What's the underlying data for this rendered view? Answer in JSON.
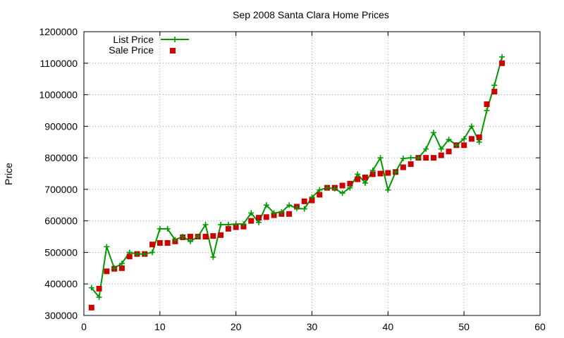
{
  "chart_data": {
    "type": "scatter",
    "title": "Sep 2008 Santa Clara Home Prices",
    "xlabel": "",
    "ylabel": "Price",
    "xlim": [
      0,
      60
    ],
    "ylim": [
      300000,
      1200000
    ],
    "xticks": [
      0,
      10,
      20,
      30,
      40,
      50,
      60
    ],
    "yticks": [
      300000,
      400000,
      500000,
      600000,
      700000,
      800000,
      900000,
      1000000,
      1100000,
      1200000
    ],
    "grid": true,
    "legend_position": "top-left",
    "series": [
      {
        "name": "List Price",
        "style": "linespoints",
        "marker": "plus",
        "color": "#009900",
        "x": [
          1,
          2,
          3,
          4,
          5,
          6,
          7,
          8,
          9,
          10,
          11,
          12,
          13,
          14,
          15,
          16,
          17,
          18,
          19,
          20,
          21,
          22,
          23,
          24,
          25,
          26,
          27,
          28,
          29,
          30,
          31,
          32,
          33,
          34,
          35,
          36,
          37,
          38,
          39,
          40,
          41,
          42,
          43,
          44,
          45,
          46,
          47,
          48,
          49,
          50,
          51,
          52,
          53,
          54,
          55
        ],
        "y": [
          388000,
          358000,
          518000,
          450000,
          465000,
          500000,
          495000,
          495000,
          500000,
          575000,
          575000,
          540000,
          550000,
          535000,
          550000,
          588000,
          485000,
          588000,
          588000,
          590000,
          590000,
          625000,
          595000,
          650000,
          625000,
          628000,
          650000,
          640000,
          638000,
          675000,
          698000,
          705000,
          702000,
          688000,
          705000,
          748000,
          720000,
          760000,
          800000,
          698000,
          755000,
          798000,
          800000,
          800000,
          828000,
          880000,
          828000,
          858000,
          840000,
          860000,
          900000,
          850000,
          950000,
          1030000,
          1120000
        ]
      },
      {
        "name": "Sale Price",
        "style": "points",
        "marker": "square",
        "color": "#cc0000",
        "x": [
          1,
          2,
          3,
          4,
          5,
          6,
          7,
          8,
          9,
          10,
          11,
          12,
          13,
          14,
          15,
          16,
          17,
          18,
          19,
          20,
          21,
          22,
          23,
          24,
          25,
          26,
          27,
          28,
          29,
          30,
          31,
          32,
          33,
          34,
          35,
          36,
          37,
          38,
          39,
          40,
          41,
          42,
          43,
          44,
          45,
          46,
          47,
          48,
          49,
          50,
          51,
          52,
          53,
          54,
          55
        ],
        "y": [
          325000,
          385000,
          440000,
          448000,
          450000,
          487000,
          495000,
          495000,
          525000,
          530000,
          530000,
          535000,
          548000,
          550000,
          550000,
          550000,
          552000,
          555000,
          575000,
          580000,
          582000,
          600000,
          610000,
          612000,
          618000,
          622000,
          622000,
          645000,
          662000,
          665000,
          683000,
          705000,
          705000,
          712000,
          718000,
          732000,
          738000,
          748000,
          750000,
          752000,
          755000,
          770000,
          780000,
          800000,
          800000,
          800000,
          808000,
          820000,
          840000,
          840000,
          860000,
          865000,
          970000,
          1010000,
          1100000
        ]
      }
    ]
  }
}
